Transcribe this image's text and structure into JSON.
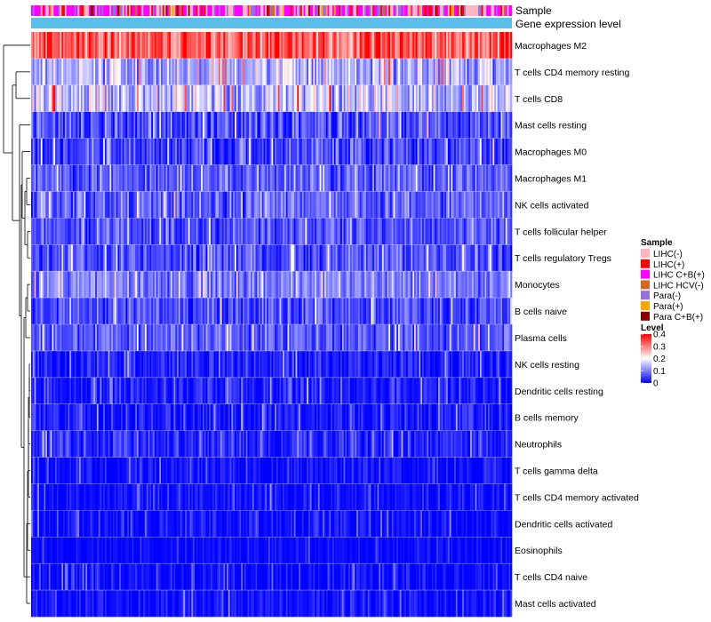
{
  "chart_data": {
    "type": "heatmap",
    "n_samples": 300,
    "annotations": [
      {
        "key": "sample",
        "label": "Sample"
      },
      {
        "key": "level",
        "label": "Gene expression level",
        "color": "#5bbfea"
      }
    ],
    "rows": [
      {
        "label": "Macrophages M2",
        "mean": 0.32,
        "spread": 0.08
      },
      {
        "label": "T cells CD4 memory resting",
        "mean": 0.14,
        "spread": 0.07
      },
      {
        "label": "T cells CD8",
        "mean": 0.16,
        "spread": 0.08
      },
      {
        "label": "Mast cells resting",
        "mean": 0.06,
        "spread": 0.06
      },
      {
        "label": "Macrophages M0",
        "mean": 0.05,
        "spread": 0.06
      },
      {
        "label": "Macrophages M1",
        "mean": 0.07,
        "spread": 0.05
      },
      {
        "label": "NK cells activated",
        "mean": 0.07,
        "spread": 0.05
      },
      {
        "label": "T cells follicular helper",
        "mean": 0.06,
        "spread": 0.05
      },
      {
        "label": "T cells regulatory  Tregs",
        "mean": 0.06,
        "spread": 0.05
      },
      {
        "label": "Monocytes",
        "mean": 0.1,
        "spread": 0.05
      },
      {
        "label": "B cells naive",
        "mean": 0.06,
        "spread": 0.05
      },
      {
        "label": "Plasma cells",
        "mean": 0.07,
        "spread": 0.05
      },
      {
        "label": "NK cells resting",
        "mean": 0.02,
        "spread": 0.04
      },
      {
        "label": "Dendritic cells resting",
        "mean": 0.02,
        "spread": 0.04
      },
      {
        "label": "B cells memory",
        "mean": 0.02,
        "spread": 0.04
      },
      {
        "label": "Neutrophils",
        "mean": 0.03,
        "spread": 0.04
      },
      {
        "label": "T cells gamma delta",
        "mean": 0.01,
        "spread": 0.03
      },
      {
        "label": "T cells CD4 memory activated",
        "mean": 0.01,
        "spread": 0.03
      },
      {
        "label": "Dendritic cells activated",
        "mean": 0.01,
        "spread": 0.03
      },
      {
        "label": "Eosinophils",
        "mean": 0.005,
        "spread": 0.02
      },
      {
        "label": "T cells CD4 naive",
        "mean": 0.005,
        "spread": 0.03
      },
      {
        "label": "Mast cells activated",
        "mean": 0.01,
        "spread": 0.03
      }
    ],
    "color_scale": {
      "min": 0,
      "max": 0.4,
      "stops": [
        {
          "value": 0,
          "color": "#0000ff"
        },
        {
          "value": 0.2,
          "color": "#ffffff"
        },
        {
          "value": 0.4,
          "color": "#ff0000"
        }
      ]
    },
    "legends": {
      "sample": {
        "title": "Sample",
        "entries": [
          {
            "label": "LIHC(-)",
            "color": "#ffb6c1"
          },
          {
            "label": "LIHC(+)",
            "color": "#ff0000"
          },
          {
            "label": "LIHC C+B(+)",
            "color": "#ff00ff"
          },
          {
            "label": "LIHC HCV(-)",
            "color": "#d2691e"
          },
          {
            "label": "Para(-)",
            "color": "#9370db"
          },
          {
            "label": "Para(+)",
            "color": "#ffa500"
          },
          {
            "label": "Para C+B(+)",
            "color": "#8b0000"
          }
        ]
      },
      "level": {
        "title": "Level",
        "ticks": [
          "0.4",
          "0.3",
          "0.2",
          "0.1",
          "0"
        ]
      }
    }
  }
}
